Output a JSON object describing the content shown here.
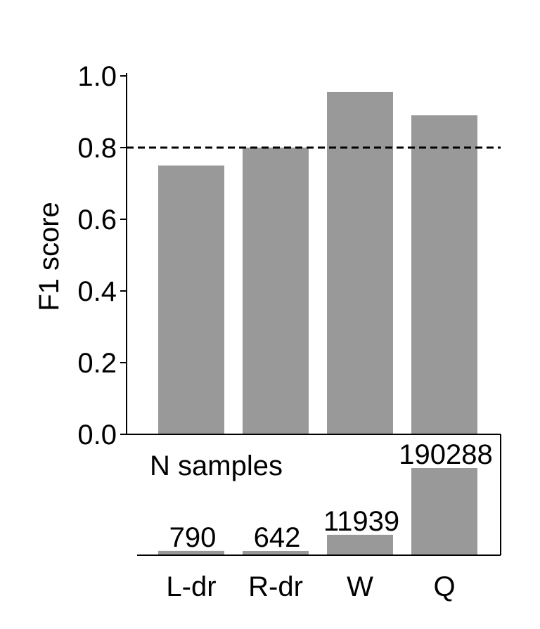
{
  "chart_data": {
    "type": "bar",
    "categories": [
      "L-dr",
      "R-dr",
      "W",
      "Q"
    ],
    "ylabel": "F1 score",
    "ylim": [
      0,
      1.0
    ],
    "yticks": [
      "0.0",
      "0.2",
      "0.4",
      "0.6",
      "0.8",
      "1.0"
    ],
    "grid": false,
    "bar_color": "#999999",
    "series": [
      {
        "values": [
          0.75,
          0.8,
          0.955,
          0.89
        ]
      }
    ],
    "reference_line": {
      "value": 0.8,
      "style": "dashed",
      "color": "#000000"
    },
    "sample_panel": {
      "title": "N samples",
      "values": [
        790,
        642,
        11939,
        190288
      ],
      "labels": [
        "790",
        "642",
        "11939",
        "190288"
      ]
    }
  }
}
